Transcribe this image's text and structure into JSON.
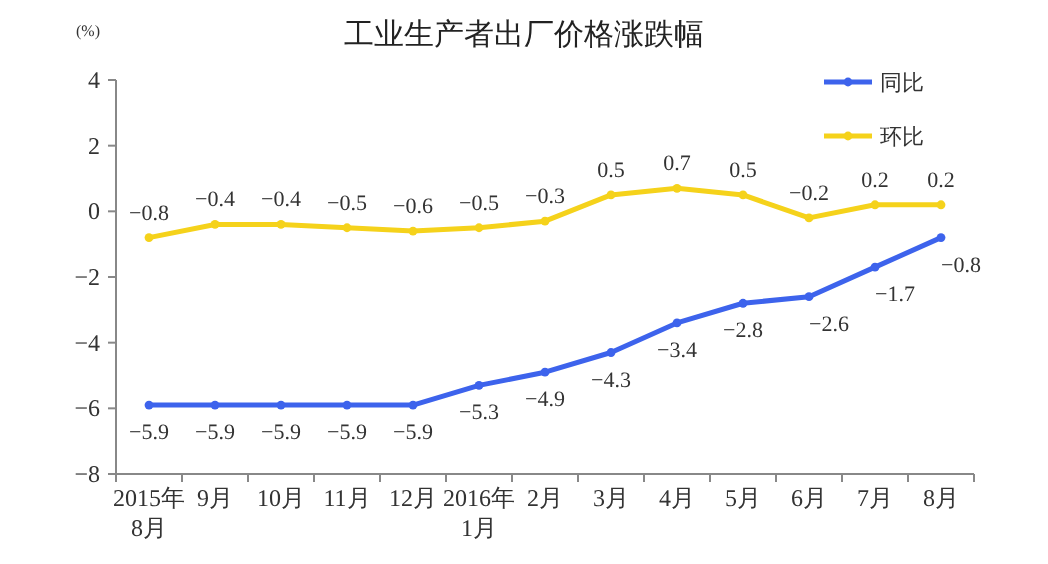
{
  "chart_data": {
    "type": "line",
    "title": "工业生产者出厂价格涨跌幅",
    "ylabel": "(%)",
    "categories": [
      "2015年\n8月",
      "9月",
      "10月",
      "11月",
      "12月",
      "2016年\n1月",
      "2月",
      "3月",
      "4月",
      "5月",
      "6月",
      "7月",
      "8月"
    ],
    "series": [
      {
        "name": "同比",
        "color": "#3d63ec",
        "values": [
          -5.9,
          -5.9,
          -5.9,
          -5.9,
          -5.9,
          -5.3,
          -4.9,
          -4.3,
          -3.4,
          -2.8,
          -2.6,
          -1.7,
          -0.8
        ]
      },
      {
        "name": "环比",
        "color": "#f5d21b",
        "values": [
          -0.8,
          -0.4,
          -0.4,
          -0.5,
          -0.6,
          -0.5,
          -0.3,
          0.5,
          0.7,
          0.5,
          -0.2,
          0.2,
          0.2
        ]
      }
    ],
    "ylim": [
      -8,
      4
    ],
    "yticks": [
      -8,
      -6,
      -4,
      -2,
      0,
      2,
      4
    ],
    "data_labels": true,
    "legend": "top right",
    "marker": "circle",
    "line_style": "solid",
    "grid": false
  }
}
